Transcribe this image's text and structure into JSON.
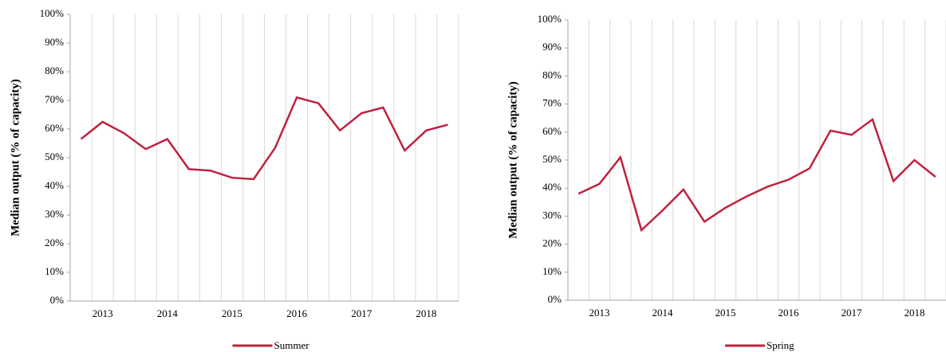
{
  "chart_data": [
    {
      "type": "line",
      "y_label": "Median output (% of capacity)",
      "categories": [
        null,
        "2013",
        null,
        null,
        "2014",
        null,
        null,
        "2015",
        null,
        null,
        "2016",
        null,
        null,
        "2017",
        null,
        null,
        "2018",
        null
      ],
      "series": [
        {
          "name": "Summer",
          "color": "#c0213f",
          "values": [
            56.5,
            62.5,
            58.5,
            53,
            56.5,
            46,
            45.5,
            43,
            42.5,
            53.5,
            71,
            69,
            59.5,
            65.5,
            67.5,
            52.5,
            59.5,
            61.5
          ]
        }
      ],
      "ylim": [
        0,
        100
      ],
      "yticks": [
        {
          "value": 0,
          "label": "0%"
        },
        {
          "value": 10,
          "label": "10%"
        },
        {
          "value": 20,
          "label": "20%"
        },
        {
          "value": 30,
          "label": "30%"
        },
        {
          "value": 40,
          "label": "40%"
        },
        {
          "value": 50,
          "label": "50%"
        },
        {
          "value": 60,
          "label": "60%"
        },
        {
          "value": 70,
          "label": "70%"
        },
        {
          "value": 80,
          "label": "80%"
        },
        {
          "value": 90,
          "label": "90%"
        },
        {
          "value": 100,
          "label": "100%"
        }
      ]
    },
    {
      "type": "line",
      "y_label": "Median output (% of capacity)",
      "categories": [
        null,
        "2013",
        null,
        null,
        "2014",
        null,
        null,
        "2015",
        null,
        null,
        "2016",
        null,
        null,
        "2017",
        null,
        null,
        "2018",
        null
      ],
      "series": [
        {
          "name": "Spring",
          "color": "#c0213f",
          "values": [
            38,
            41.5,
            51,
            25,
            32,
            39.5,
            28,
            33,
            37,
            40.5,
            43,
            47,
            60.5,
            59,
            64.5,
            42.5,
            50,
            44
          ]
        }
      ],
      "ylim": [
        0,
        100
      ],
      "yticks": [
        {
          "value": 0,
          "label": "0%"
        },
        {
          "value": 10,
          "label": "10%"
        },
        {
          "value": 20,
          "label": "20%"
        },
        {
          "value": 30,
          "label": "30%"
        },
        {
          "value": 40,
          "label": "40%"
        },
        {
          "value": 50,
          "label": "50%"
        },
        {
          "value": 60,
          "label": "60%"
        },
        {
          "value": 70,
          "label": "70%"
        },
        {
          "value": 80,
          "label": "80%"
        },
        {
          "value": 90,
          "label": "90%"
        },
        {
          "value": 100,
          "label": "100%"
        }
      ]
    }
  ]
}
